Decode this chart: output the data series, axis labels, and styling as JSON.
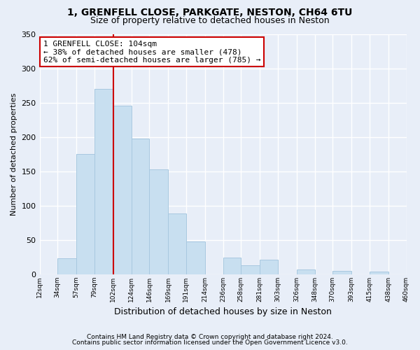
{
  "title": "1, GRENFELL CLOSE, PARKGATE, NESTON, CH64 6TU",
  "subtitle": "Size of property relative to detached houses in Neston",
  "xlabel": "Distribution of detached houses by size in Neston",
  "ylabel": "Number of detached properties",
  "bar_color": "#c8dff0",
  "bar_edge_color": "#a8c8e0",
  "background_color": "#e8eef8",
  "plot_bg_color": "#e8eef8",
  "grid_color": "#ffffff",
  "bin_edges": [
    12,
    34,
    57,
    79,
    102,
    124,
    146,
    169,
    191,
    214,
    236,
    258,
    281,
    303,
    326,
    348,
    370,
    393,
    415,
    438,
    460
  ],
  "bin_labels": [
    "12sqm",
    "34sqm",
    "57sqm",
    "79sqm",
    "102sqm",
    "124sqm",
    "146sqm",
    "169sqm",
    "191sqm",
    "214sqm",
    "236sqm",
    "258sqm",
    "281sqm",
    "303sqm",
    "326sqm",
    "348sqm",
    "370sqm",
    "393sqm",
    "415sqm",
    "438sqm",
    "460sqm"
  ],
  "counts": [
    0,
    23,
    176,
    270,
    246,
    198,
    153,
    89,
    48,
    0,
    25,
    13,
    21,
    0,
    7,
    0,
    5,
    0,
    4,
    0,
    0
  ],
  "vline_x": 102,
  "vline_color": "#cc0000",
  "annotation_line1": "1 GRENFELL CLOSE: 104sqm",
  "annotation_line2": "← 38% of detached houses are smaller (478)",
  "annotation_line3": "62% of semi-detached houses are larger (785) →",
  "annotation_box_color": "white",
  "annotation_box_edge": "#cc0000",
  "ylim": [
    0,
    350
  ],
  "yticks": [
    0,
    50,
    100,
    150,
    200,
    250,
    300,
    350
  ],
  "footer1": "Contains HM Land Registry data © Crown copyright and database right 2024.",
  "footer2": "Contains public sector information licensed under the Open Government Licence v3.0."
}
